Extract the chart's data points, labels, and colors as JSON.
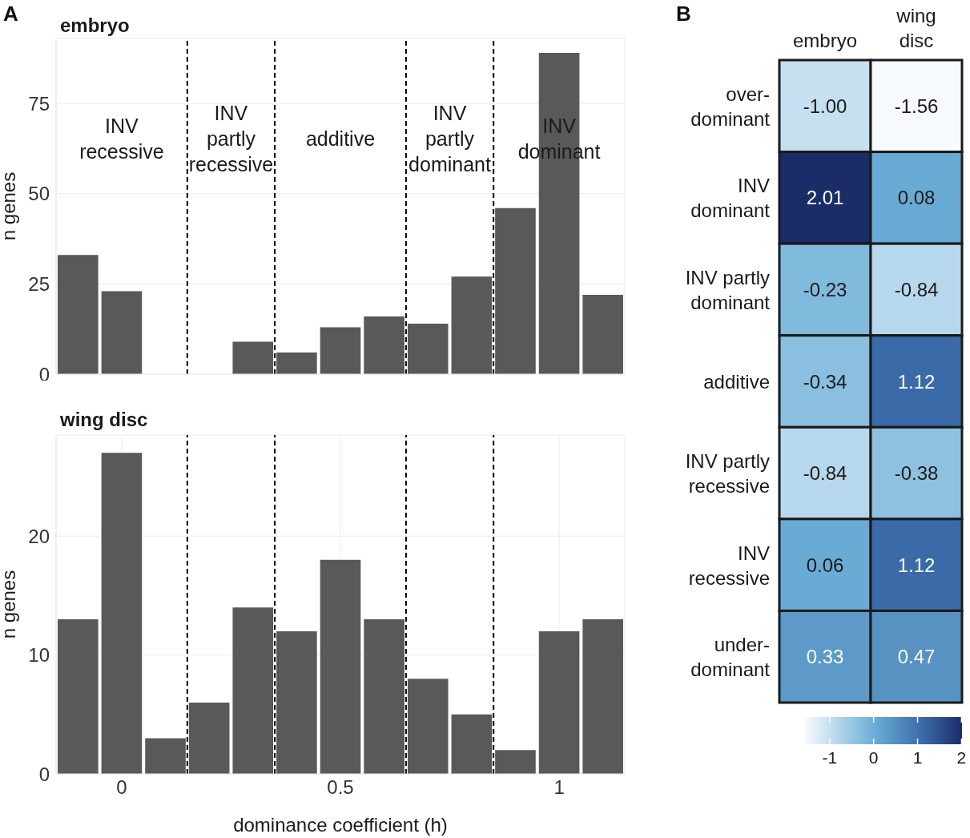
{
  "chart_data": [
    {
      "type": "histogram",
      "title": "embryo",
      "ylabel": "n genes",
      "bins": [
        -0.15,
        -0.05,
        0.05,
        0.15,
        0.25,
        0.35,
        0.45,
        0.55,
        0.65,
        0.75,
        0.85,
        0.95,
        1.05,
        1.15
      ],
      "values": [
        33,
        23,
        0,
        0,
        9,
        6,
        13,
        16,
        14,
        27,
        46,
        89,
        22
      ],
      "color": "#595959",
      "xlim": [
        -0.15,
        1.15
      ],
      "xticks": [
        0,
        0.5,
        1
      ],
      "ylim": [
        0,
        93
      ],
      "yticks": [
        0,
        25,
        50,
        75
      ],
      "grid": true,
      "tick_labels": "y",
      "ref_lines": [
        {
          "axis": "x",
          "value": 0.15,
          "color": "#000000",
          "line_style": "dashed"
        },
        {
          "axis": "x",
          "value": 0.35,
          "color": "#000000",
          "line_style": "dashed"
        },
        {
          "axis": "x",
          "value": 0.65,
          "color": "#000000",
          "line_style": "dashed"
        },
        {
          "axis": "x",
          "value": 0.85,
          "color": "#000000",
          "line_style": "dashed"
        }
      ],
      "annotations": [
        "A",
        "INV recessive",
        "INV partly recessive",
        "additive",
        "INV partly dominant",
        "INV dominant"
      ]
    },
    {
      "type": "histogram",
      "title": "wing disc",
      "ylabel": "n genes",
      "xlabel": "dominance coefficient (h)",
      "bins": [
        -0.15,
        -0.05,
        0.05,
        0.15,
        0.25,
        0.35,
        0.45,
        0.55,
        0.65,
        0.75,
        0.85,
        0.95,
        1.05,
        1.15
      ],
      "values": [
        13,
        27,
        3,
        6,
        14,
        12,
        18,
        13,
        8,
        5,
        2,
        12,
        13
      ],
      "color": "#595959",
      "xlim": [
        -0.15,
        1.15
      ],
      "xticks": [
        0,
        0.5,
        1
      ],
      "ylim": [
        0,
        28.5
      ],
      "yticks": [
        0,
        10,
        20
      ],
      "grid": true,
      "ref_lines": [
        {
          "axis": "x",
          "value": 0.15,
          "color": "#000000",
          "line_style": "dashed"
        },
        {
          "axis": "x",
          "value": 0.35,
          "color": "#000000",
          "line_style": "dashed"
        },
        {
          "axis": "x",
          "value": 0.65,
          "color": "#000000",
          "line_style": "dashed"
        },
        {
          "axis": "x",
          "value": 0.85,
          "color": "#000000",
          "line_style": "dashed"
        }
      ]
    },
    {
      "type": "heatmap",
      "categories": [
        "embryo",
        "wing disc"
      ],
      "y_categories": [
        "over-dominant",
        "INV dominant",
        "INV partly dominant",
        "additive",
        "INV partly recessive",
        "INV recessive",
        "under-dominant"
      ],
      "cells": [
        [
          -1.0,
          -1.56
        ],
        [
          2.01,
          0.08
        ],
        [
          -0.23,
          -0.84
        ],
        [
          -0.34,
          1.12
        ],
        [
          -0.84,
          -0.38
        ],
        [
          0.06,
          1.12
        ],
        [
          0.33,
          0.47
        ]
      ],
      "cell_labels": [
        [
          "-1.00",
          "-1.56"
        ],
        [
          "2.01",
          "0.08"
        ],
        [
          "-0.23",
          "-0.84"
        ],
        [
          "-0.34",
          "1.12"
        ],
        [
          "-0.84",
          "-0.38"
        ],
        [
          "0.06",
          "1.12"
        ],
        [
          "0.33",
          "0.47"
        ]
      ],
      "clim": [
        -1.56,
        2.01
      ],
      "cticks": [
        -1,
        0,
        1,
        2
      ],
      "annotations": [
        "B"
      ]
    }
  ]
}
